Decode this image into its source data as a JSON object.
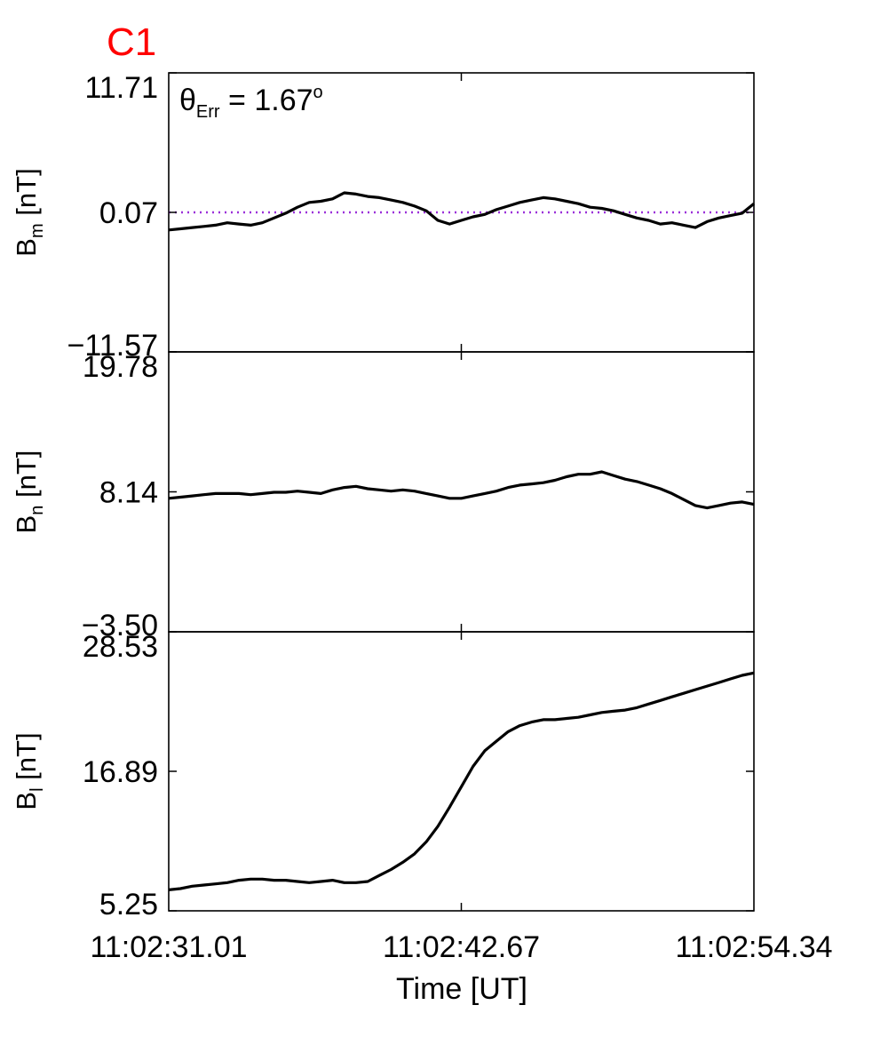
{
  "figure": {
    "title": "C1",
    "title_color": "#ff0000",
    "annotation": {
      "symbol": "θ",
      "subscript": "Err",
      "text": " =  1.67",
      "superscript": "o"
    },
    "reference_line_color": "#9b30d9",
    "xlabel": "Time [UT]",
    "xtick_labels": [
      "11:02:31.01",
      "11:02:42.67",
      "11:02:54.34"
    ]
  },
  "chart_data": [
    {
      "type": "line",
      "name": "Bm",
      "ylabel": {
        "main": "B",
        "sub": "m",
        "unit": " [nT]"
      },
      "ylim": [
        -11.57,
        11.71
      ],
      "ytick_labels": [
        "11.71",
        "0.07",
        "−11.57"
      ],
      "yticks": [
        11.71,
        0.07,
        -11.57
      ],
      "reference_line": 0.07,
      "x": [
        0,
        1,
        2,
        3,
        4,
        5,
        6,
        7,
        8,
        9,
        10,
        11,
        12,
        13,
        14,
        15,
        16,
        17,
        18,
        19,
        20,
        21,
        22,
        23,
        24,
        25,
        26,
        27,
        28,
        29,
        30,
        31,
        32,
        33,
        34,
        35,
        36,
        37,
        38,
        39,
        40,
        41,
        42,
        43,
        44,
        45,
        46,
        47,
        48,
        49,
        50
      ],
      "values": [
        -1.4,
        -1.3,
        -1.2,
        -1.1,
        -1.0,
        -0.8,
        -0.9,
        -1.0,
        -0.8,
        -0.4,
        0.0,
        0.5,
        0.9,
        1.0,
        1.2,
        1.7,
        1.6,
        1.4,
        1.3,
        1.1,
        0.9,
        0.6,
        0.2,
        -0.6,
        -0.9,
        -0.6,
        -0.3,
        -0.1,
        0.3,
        0.6,
        0.9,
        1.1,
        1.3,
        1.2,
        1.0,
        0.8,
        0.5,
        0.4,
        0.2,
        -0.1,
        -0.4,
        -0.6,
        -0.9,
        -0.8,
        -1.0,
        -1.2,
        -0.7,
        -0.4,
        -0.2,
        0.0,
        0.8
      ]
    },
    {
      "type": "line",
      "name": "Bn",
      "ylabel": {
        "main": "B",
        "sub": "n",
        "unit": " [nT]"
      },
      "ylim": [
        -3.5,
        19.78
      ],
      "ytick_labels": [
        "19.78",
        "8.14",
        "−3.50"
      ],
      "yticks": [
        19.78,
        8.14,
        -3.5
      ],
      "x": [
        0,
        1,
        2,
        3,
        4,
        5,
        6,
        7,
        8,
        9,
        10,
        11,
        12,
        13,
        14,
        15,
        16,
        17,
        18,
        19,
        20,
        21,
        22,
        23,
        24,
        25,
        26,
        27,
        28,
        29,
        30,
        31,
        32,
        33,
        34,
        35,
        36,
        37,
        38,
        39,
        40,
        41,
        42,
        43,
        44,
        45,
        46,
        47,
        48,
        49,
        50
      ],
      "values": [
        7.6,
        7.7,
        7.8,
        7.9,
        8.0,
        8.0,
        8.0,
        7.9,
        8.0,
        8.1,
        8.1,
        8.2,
        8.1,
        8.0,
        8.3,
        8.5,
        8.6,
        8.4,
        8.3,
        8.2,
        8.3,
        8.2,
        8.0,
        7.8,
        7.6,
        7.6,
        7.8,
        8.0,
        8.2,
        8.5,
        8.7,
        8.8,
        8.9,
        9.1,
        9.4,
        9.6,
        9.6,
        9.8,
        9.5,
        9.2,
        9.0,
        8.7,
        8.4,
        8.0,
        7.5,
        7.0,
        6.8,
        7.0,
        7.2,
        7.3,
        7.1
      ]
    },
    {
      "type": "line",
      "name": "Bl",
      "ylabel": {
        "main": "B",
        "sub": "l",
        "unit": " [nT]"
      },
      "ylim": [
        5.25,
        28.53
      ],
      "ytick_labels": [
        "28.53",
        "16.89",
        "5.25"
      ],
      "yticks": [
        28.53,
        16.89,
        5.25
      ],
      "x": [
        0,
        1,
        2,
        3,
        4,
        5,
        6,
        7,
        8,
        9,
        10,
        11,
        12,
        13,
        14,
        15,
        16,
        17,
        18,
        19,
        20,
        21,
        22,
        23,
        24,
        25,
        26,
        27,
        28,
        29,
        30,
        31,
        32,
        33,
        34,
        35,
        36,
        37,
        38,
        39,
        40,
        41,
        42,
        43,
        44,
        45,
        46,
        47,
        48,
        49,
        50
      ],
      "values": [
        7.0,
        7.1,
        7.3,
        7.4,
        7.5,
        7.6,
        7.8,
        7.9,
        7.9,
        7.8,
        7.8,
        7.7,
        7.6,
        7.7,
        7.8,
        7.6,
        7.6,
        7.7,
        8.2,
        8.7,
        9.3,
        10.0,
        11.0,
        12.3,
        13.9,
        15.6,
        17.3,
        18.6,
        19.4,
        20.2,
        20.7,
        21.0,
        21.2,
        21.2,
        21.3,
        21.4,
        21.6,
        21.8,
        21.9,
        22.0,
        22.2,
        22.5,
        22.8,
        23.1,
        23.4,
        23.7,
        24.0,
        24.3,
        24.6,
        24.9,
        25.1
      ]
    }
  ]
}
